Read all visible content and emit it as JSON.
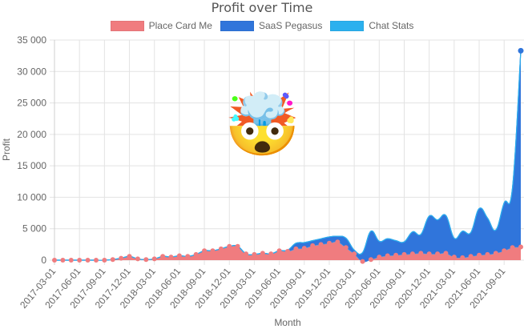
{
  "chart": {
    "title": "Profit over Time",
    "legend": [
      {
        "label": "Place Card Me",
        "color": "#f07c7f"
      },
      {
        "label": "SaaS Pegasus",
        "color": "#3075db"
      },
      {
        "label": "Chat Stats",
        "color": "#2bb0ee"
      }
    ],
    "emoji": "🤯"
  },
  "chart_data": {
    "type": "area",
    "stacked": true,
    "title": "Profit over Time",
    "xlabel": "Month",
    "ylabel": "Profit",
    "ylim": [
      0,
      35000
    ],
    "yticks": [
      0,
      5000,
      10000,
      15000,
      20000,
      25000,
      30000,
      35000
    ],
    "ytick_labels": [
      "0",
      "5 000",
      "10 000",
      "15 000",
      "20 000",
      "25 000",
      "30 000",
      "35 000"
    ],
    "xtick_labels": [
      "2017-03-01",
      "2017-06-01",
      "2017-09-01",
      "2017-12-01",
      "2018-03-01",
      "2018-06-01",
      "2018-09-01",
      "2018-12-01",
      "2019-03-01",
      "2019-06-01",
      "2019-09-01",
      "2019-12-01",
      "2020-03-01",
      "2020-06-01",
      "2020-09-01",
      "2020-12-01",
      "2021-03-01",
      "2021-06-01",
      "2021-09-01"
    ],
    "grid": true,
    "legend_position": "top",
    "x": [
      "2017-03",
      "2017-04",
      "2017-05",
      "2017-06",
      "2017-07",
      "2017-08",
      "2017-09",
      "2017-10",
      "2017-11",
      "2017-12",
      "2018-01",
      "2018-02",
      "2018-03",
      "2018-04",
      "2018-05",
      "2018-06",
      "2018-07",
      "2018-08",
      "2018-09",
      "2018-10",
      "2018-11",
      "2018-12",
      "2019-01",
      "2019-02",
      "2019-03",
      "2019-04",
      "2019-05",
      "2019-06",
      "2019-07",
      "2019-08",
      "2019-09",
      "2019-10",
      "2019-11",
      "2019-12",
      "2020-01",
      "2020-02",
      "2020-03",
      "2020-04",
      "2020-05",
      "2020-06",
      "2020-07",
      "2020-08",
      "2020-09",
      "2020-10",
      "2020-11",
      "2020-12",
      "2021-01",
      "2021-02",
      "2021-03",
      "2021-04",
      "2021-05",
      "2021-06",
      "2021-07",
      "2021-08",
      "2021-09",
      "2021-10",
      "2021-11"
    ],
    "series": [
      {
        "name": "Place Card Me",
        "color": "#f07c7f",
        "values": [
          0,
          0,
          0,
          0,
          0,
          0,
          0,
          100,
          300,
          600,
          200,
          100,
          200,
          600,
          500,
          700,
          600,
          900,
          1500,
          1500,
          1800,
          2200,
          2200,
          1000,
          900,
          1100,
          1000,
          1500,
          1400,
          1800,
          1900,
          2300,
          2500,
          2700,
          2900,
          2000,
          1000,
          -200,
          100,
          500,
          700,
          800,
          900,
          1000,
          1100,
          1000,
          1000,
          1100,
          500,
          400,
          600,
          800,
          900,
          1100,
          1500,
          2000,
          2100
        ]
      },
      {
        "name": "SaaS Pegasus",
        "color": "#3075db",
        "values": [
          0,
          0,
          0,
          0,
          0,
          0,
          0,
          0,
          0,
          0,
          0,
          0,
          0,
          0,
          0,
          0,
          0,
          0,
          0,
          0,
          0,
          0,
          0,
          0,
          0,
          0,
          0,
          0,
          200,
          900,
          900,
          800,
          900,
          1000,
          900,
          1500,
          600,
          1400,
          4500,
          2500,
          2700,
          2300,
          2000,
          3500,
          3000,
          6000,
          5400,
          6000,
          3000,
          4200,
          3800,
          7400,
          5800,
          3700,
          7600,
          9500,
          31200
        ]
      },
      {
        "name": "Chat Stats",
        "color": "#2bb0ee",
        "values": [
          0,
          0,
          0,
          0,
          0,
          0,
          0,
          0,
          0,
          0,
          0,
          0,
          0,
          0,
          0,
          0,
          0,
          0,
          0,
          0,
          0,
          0,
          0,
          0,
          0,
          0,
          0,
          0,
          0,
          0,
          0,
          0,
          0,
          0,
          0,
          0,
          0,
          0,
          0,
          0,
          0,
          0,
          0,
          0,
          0,
          0,
          0,
          0,
          0,
          0,
          0,
          0,
          0,
          0,
          0,
          0,
          0
        ]
      }
    ]
  }
}
